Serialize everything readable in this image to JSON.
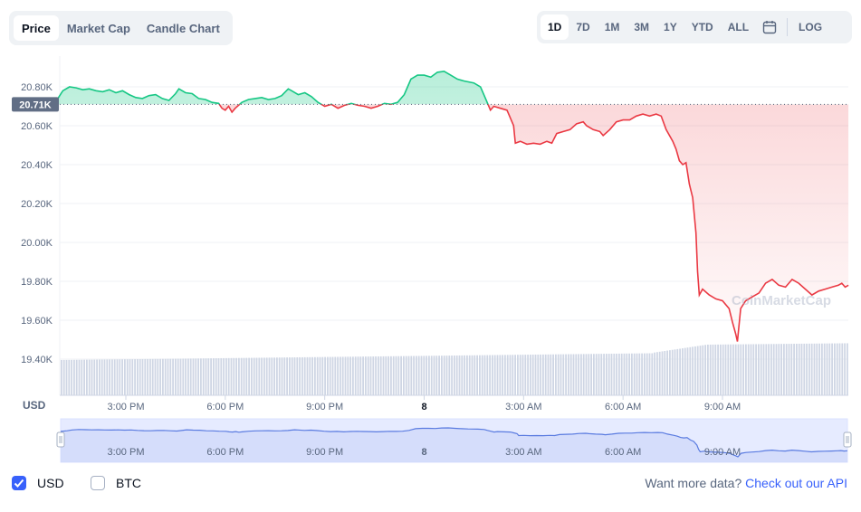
{
  "tabs": [
    {
      "label": "Price",
      "active": true
    },
    {
      "label": "Market Cap",
      "active": false
    },
    {
      "label": "Candle Chart",
      "active": false
    }
  ],
  "ranges": [
    {
      "label": "1D",
      "active": true
    },
    {
      "label": "7D",
      "active": false
    },
    {
      "label": "1M",
      "active": false
    },
    {
      "label": "3M",
      "active": false
    },
    {
      "label": "1Y",
      "active": false
    },
    {
      "label": "YTD",
      "active": false
    },
    {
      "label": "ALL",
      "active": false
    }
  ],
  "log_label": "LOG",
  "calendar_icon": "calendar-icon",
  "watermark": "CoinMarketCap",
  "footer": {
    "usd_label": "USD",
    "usd_checked": true,
    "btc_label": "BTC",
    "btc_checked": false,
    "more_data_text": "Want more data?",
    "api_link": "Check out our API"
  },
  "colors": {
    "up": "#16c784",
    "down": "#ea3943",
    "accent": "#3861fb"
  },
  "chart_data": {
    "type": "area",
    "currency_label": "USD",
    "y_ticks": [
      "20.80K",
      "20.60K",
      "20.40K",
      "20.20K",
      "20.00K",
      "19.80K",
      "19.60K",
      "19.40K"
    ],
    "y_tick_values": [
      20800,
      20600,
      20400,
      20200,
      20000,
      19800,
      19600,
      19400
    ],
    "ylim": [
      19220,
      20960
    ],
    "reference_value": 20710,
    "reference_label": "20.71K",
    "x_ticks": [
      "3:00 PM",
      "6:00 PM",
      "9:00 PM",
      "8",
      "3:00 AM",
      "6:00 AM",
      "9:00 AM"
    ],
    "x_tick_hours": [
      3,
      6,
      9,
      12,
      15,
      18,
      21
    ],
    "xlim_hours": [
      0.75,
      24.8
    ],
    "price_series": [
      [
        0.75,
        20710
      ],
      [
        0.95,
        20740
      ],
      [
        1.1,
        20780
      ],
      [
        1.3,
        20800
      ],
      [
        1.5,
        20795
      ],
      [
        1.7,
        20785
      ],
      [
        1.9,
        20790
      ],
      [
        2.1,
        20780
      ],
      [
        2.3,
        20775
      ],
      [
        2.5,
        20785
      ],
      [
        2.7,
        20770
      ],
      [
        2.9,
        20780
      ],
      [
        3.1,
        20760
      ],
      [
        3.3,
        20745
      ],
      [
        3.5,
        20740
      ],
      [
        3.7,
        20755
      ],
      [
        3.9,
        20760
      ],
      [
        4.1,
        20740
      ],
      [
        4.3,
        20730
      ],
      [
        4.5,
        20765
      ],
      [
        4.6,
        20790
      ],
      [
        4.8,
        20770
      ],
      [
        5.0,
        20765
      ],
      [
        5.2,
        20740
      ],
      [
        5.4,
        20735
      ],
      [
        5.6,
        20720
      ],
      [
        5.8,
        20715
      ],
      [
        5.9,
        20690
      ],
      [
        6.0,
        20680
      ],
      [
        6.1,
        20700
      ],
      [
        6.2,
        20670
      ],
      [
        6.3,
        20690
      ],
      [
        6.5,
        20720
      ],
      [
        6.7,
        20735
      ],
      [
        6.9,
        20740
      ],
      [
        7.1,
        20745
      ],
      [
        7.3,
        20735
      ],
      [
        7.5,
        20740
      ],
      [
        7.7,
        20755
      ],
      [
        7.9,
        20790
      ],
      [
        8.0,
        20780
      ],
      [
        8.2,
        20760
      ],
      [
        8.4,
        20770
      ],
      [
        8.6,
        20750
      ],
      [
        8.8,
        20720
      ],
      [
        9.0,
        20700
      ],
      [
        9.2,
        20710
      ],
      [
        9.4,
        20690
      ],
      [
        9.6,
        20705
      ],
      [
        9.8,
        20715
      ],
      [
        10.0,
        20705
      ],
      [
        10.2,
        20700
      ],
      [
        10.4,
        20690
      ],
      [
        10.6,
        20700
      ],
      [
        10.8,
        20715
      ],
      [
        11.0,
        20710
      ],
      [
        11.2,
        20720
      ],
      [
        11.4,
        20760
      ],
      [
        11.5,
        20800
      ],
      [
        11.6,
        20840
      ],
      [
        11.8,
        20860
      ],
      [
        12.0,
        20860
      ],
      [
        12.2,
        20850
      ],
      [
        12.4,
        20875
      ],
      [
        12.6,
        20880
      ],
      [
        12.8,
        20860
      ],
      [
        13.0,
        20840
      ],
      [
        13.2,
        20830
      ],
      [
        13.5,
        20820
      ],
      [
        13.7,
        20800
      ],
      [
        13.8,
        20760
      ],
      [
        13.9,
        20720
      ],
      [
        14.0,
        20680
      ],
      [
        14.1,
        20700
      ],
      [
        14.3,
        20690
      ],
      [
        14.5,
        20680
      ],
      [
        14.6,
        20640
      ],
      [
        14.7,
        20600
      ],
      [
        14.75,
        20510
      ],
      [
        14.9,
        20520
      ],
      [
        15.1,
        20505
      ],
      [
        15.3,
        20510
      ],
      [
        15.5,
        20505
      ],
      [
        15.7,
        20520
      ],
      [
        15.85,
        20510
      ],
      [
        16.0,
        20560
      ],
      [
        16.2,
        20570
      ],
      [
        16.4,
        20580
      ],
      [
        16.6,
        20610
      ],
      [
        16.8,
        20620
      ],
      [
        16.9,
        20600
      ],
      [
        17.1,
        20580
      ],
      [
        17.3,
        20570
      ],
      [
        17.4,
        20550
      ],
      [
        17.6,
        20580
      ],
      [
        17.8,
        20620
      ],
      [
        18.0,
        20630
      ],
      [
        18.2,
        20630
      ],
      [
        18.4,
        20650
      ],
      [
        18.6,
        20660
      ],
      [
        18.8,
        20650
      ],
      [
        19.0,
        20660
      ],
      [
        19.15,
        20650
      ],
      [
        19.3,
        20580
      ],
      [
        19.5,
        20520
      ],
      [
        19.6,
        20480
      ],
      [
        19.7,
        20420
      ],
      [
        19.8,
        20400
      ],
      [
        19.9,
        20410
      ],
      [
        20.0,
        20300
      ],
      [
        20.1,
        20230
      ],
      [
        20.2,
        20050
      ],
      [
        20.25,
        19850
      ],
      [
        20.3,
        19730
      ],
      [
        20.4,
        19760
      ],
      [
        20.6,
        19730
      ],
      [
        20.8,
        19710
      ],
      [
        21.0,
        19700
      ],
      [
        21.2,
        19660
      ],
      [
        21.3,
        19590
      ],
      [
        21.4,
        19530
      ],
      [
        21.45,
        19490
      ],
      [
        21.55,
        19660
      ],
      [
        21.7,
        19700
      ],
      [
        21.9,
        19720
      ],
      [
        22.1,
        19740
      ],
      [
        22.3,
        19790
      ],
      [
        22.5,
        19810
      ],
      [
        22.7,
        19780
      ],
      [
        22.9,
        19770
      ],
      [
        23.1,
        19810
      ],
      [
        23.3,
        19790
      ],
      [
        23.5,
        19760
      ],
      [
        23.7,
        19730
      ],
      [
        23.9,
        19750
      ],
      [
        24.1,
        19760
      ],
      [
        24.3,
        19770
      ],
      [
        24.5,
        19780
      ],
      [
        24.6,
        19790
      ],
      [
        24.7,
        19770
      ],
      [
        24.8,
        19780
      ]
    ],
    "volume_note": "grey bars",
    "navigator_x_ticks": [
      "3:00 PM",
      "6:00 PM",
      "9:00 PM",
      "8",
      "3:00 AM",
      "6:00 AM",
      "9:00 AM"
    ]
  }
}
